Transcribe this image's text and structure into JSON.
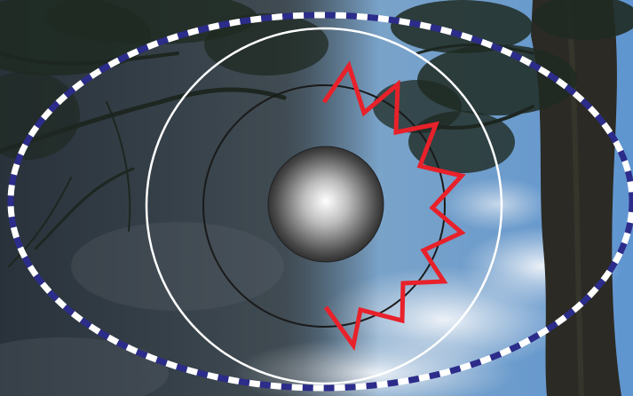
{
  "scene": {
    "description_visible_text": [],
    "colors": {
      "sky_left": "#4a5a6a",
      "sky_right": "#6f9fd0",
      "cloud": "#dfe6ee",
      "foliage": "#1f2a22",
      "trunk": "#2b2b25",
      "outer_ring_dash_a": "#2c2c8a",
      "outer_ring_dash_b": "#ffffff",
      "white_circle": "#ffffff",
      "inner_circle": "#1a1a1a",
      "zigzag": "#e8212a",
      "sphere_light": "#ffffff",
      "sphere_dark": "#1e1e1e"
    },
    "zigzag_segments": 2
  }
}
